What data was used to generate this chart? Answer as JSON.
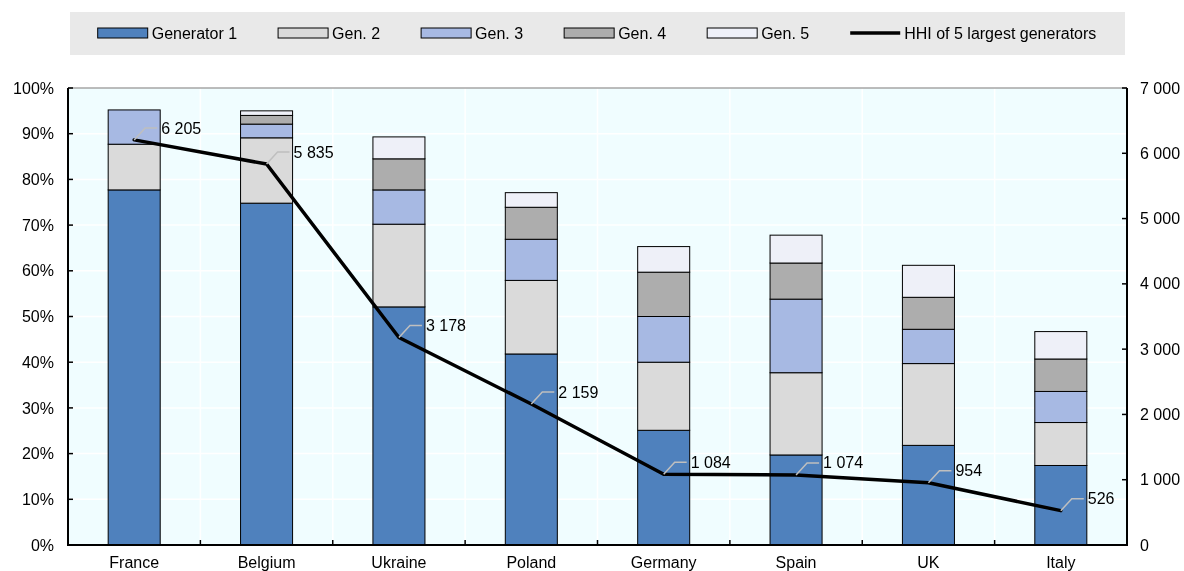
{
  "chart_data": {
    "type": "bar",
    "stacked": true,
    "categories": [
      "France",
      "Belgium",
      "Ukraine",
      "Poland",
      "Germany",
      "Spain",
      "UK",
      "Italy"
    ],
    "series": [
      {
        "name": "Generator 1",
        "color": "#4f81bd",
        "values": [
          77.7,
          74.8,
          52.1,
          41.8,
          25.1,
          19.7,
          21.8,
          17.4
        ]
      },
      {
        "name": "Gen. 2",
        "color": "#dadada",
        "values": [
          10.0,
          14.3,
          18.1,
          16.1,
          14.9,
          18.0,
          17.9,
          9.4
        ]
      },
      {
        "name": "Gen. 3",
        "color": "#a7b9e3",
        "values": [
          7.5,
          3.0,
          7.5,
          9.0,
          10.0,
          16.1,
          7.5,
          6.8
        ]
      },
      {
        "name": "Gen. 4",
        "color": "#adadad",
        "values": [
          null,
          1.9,
          6.8,
          7.0,
          9.7,
          7.9,
          7.0,
          7.1
        ]
      },
      {
        "name": "Gen. 5",
        "color": "#eef0f8",
        "values": [
          null,
          1.0,
          4.8,
          3.2,
          5.6,
          6.1,
          7.0,
          6.0
        ]
      },
      {
        "name": "HHI of 5 largest generators",
        "type": "line",
        "axis": "y2",
        "color": "#000000",
        "values": [
          6205,
          5835,
          3178,
          2159,
          1084,
          1074,
          954,
          526
        ],
        "value_labels": [
          "6 205",
          "5 835",
          "3 178",
          "2 159",
          "1 084",
          "1 074",
          "954",
          "526"
        ]
      }
    ],
    "ylim": [
      0,
      100
    ],
    "yticks": [
      {
        "value": 0,
        "label": "0%"
      },
      {
        "value": 10,
        "label": "10%"
      },
      {
        "value": 20,
        "label": "20%"
      },
      {
        "value": 30,
        "label": "30%"
      },
      {
        "value": 40,
        "label": "40%"
      },
      {
        "value": 50,
        "label": "50%"
      },
      {
        "value": 60,
        "label": "60%"
      },
      {
        "value": 70,
        "label": "70%"
      },
      {
        "value": 80,
        "label": "80%"
      },
      {
        "value": 90,
        "label": "90%"
      },
      {
        "value": 100,
        "label": "100%"
      }
    ],
    "y2lim": [
      0,
      7000
    ],
    "y2ticks": [
      0,
      {
        "value": 1000,
        "label": "1 000"
      },
      {
        "value": 2000,
        "label": "2 000"
      },
      {
        "value": 3000,
        "label": "3 000"
      },
      {
        "value": 4000,
        "label": "4 000"
      },
      {
        "value": 5000,
        "label": "5 000"
      },
      {
        "value": 6000,
        "label": "6 000"
      },
      {
        "value": 7000,
        "label": "7 000"
      }
    ],
    "grid": true,
    "legend": "top",
    "marker": "none"
  }
}
